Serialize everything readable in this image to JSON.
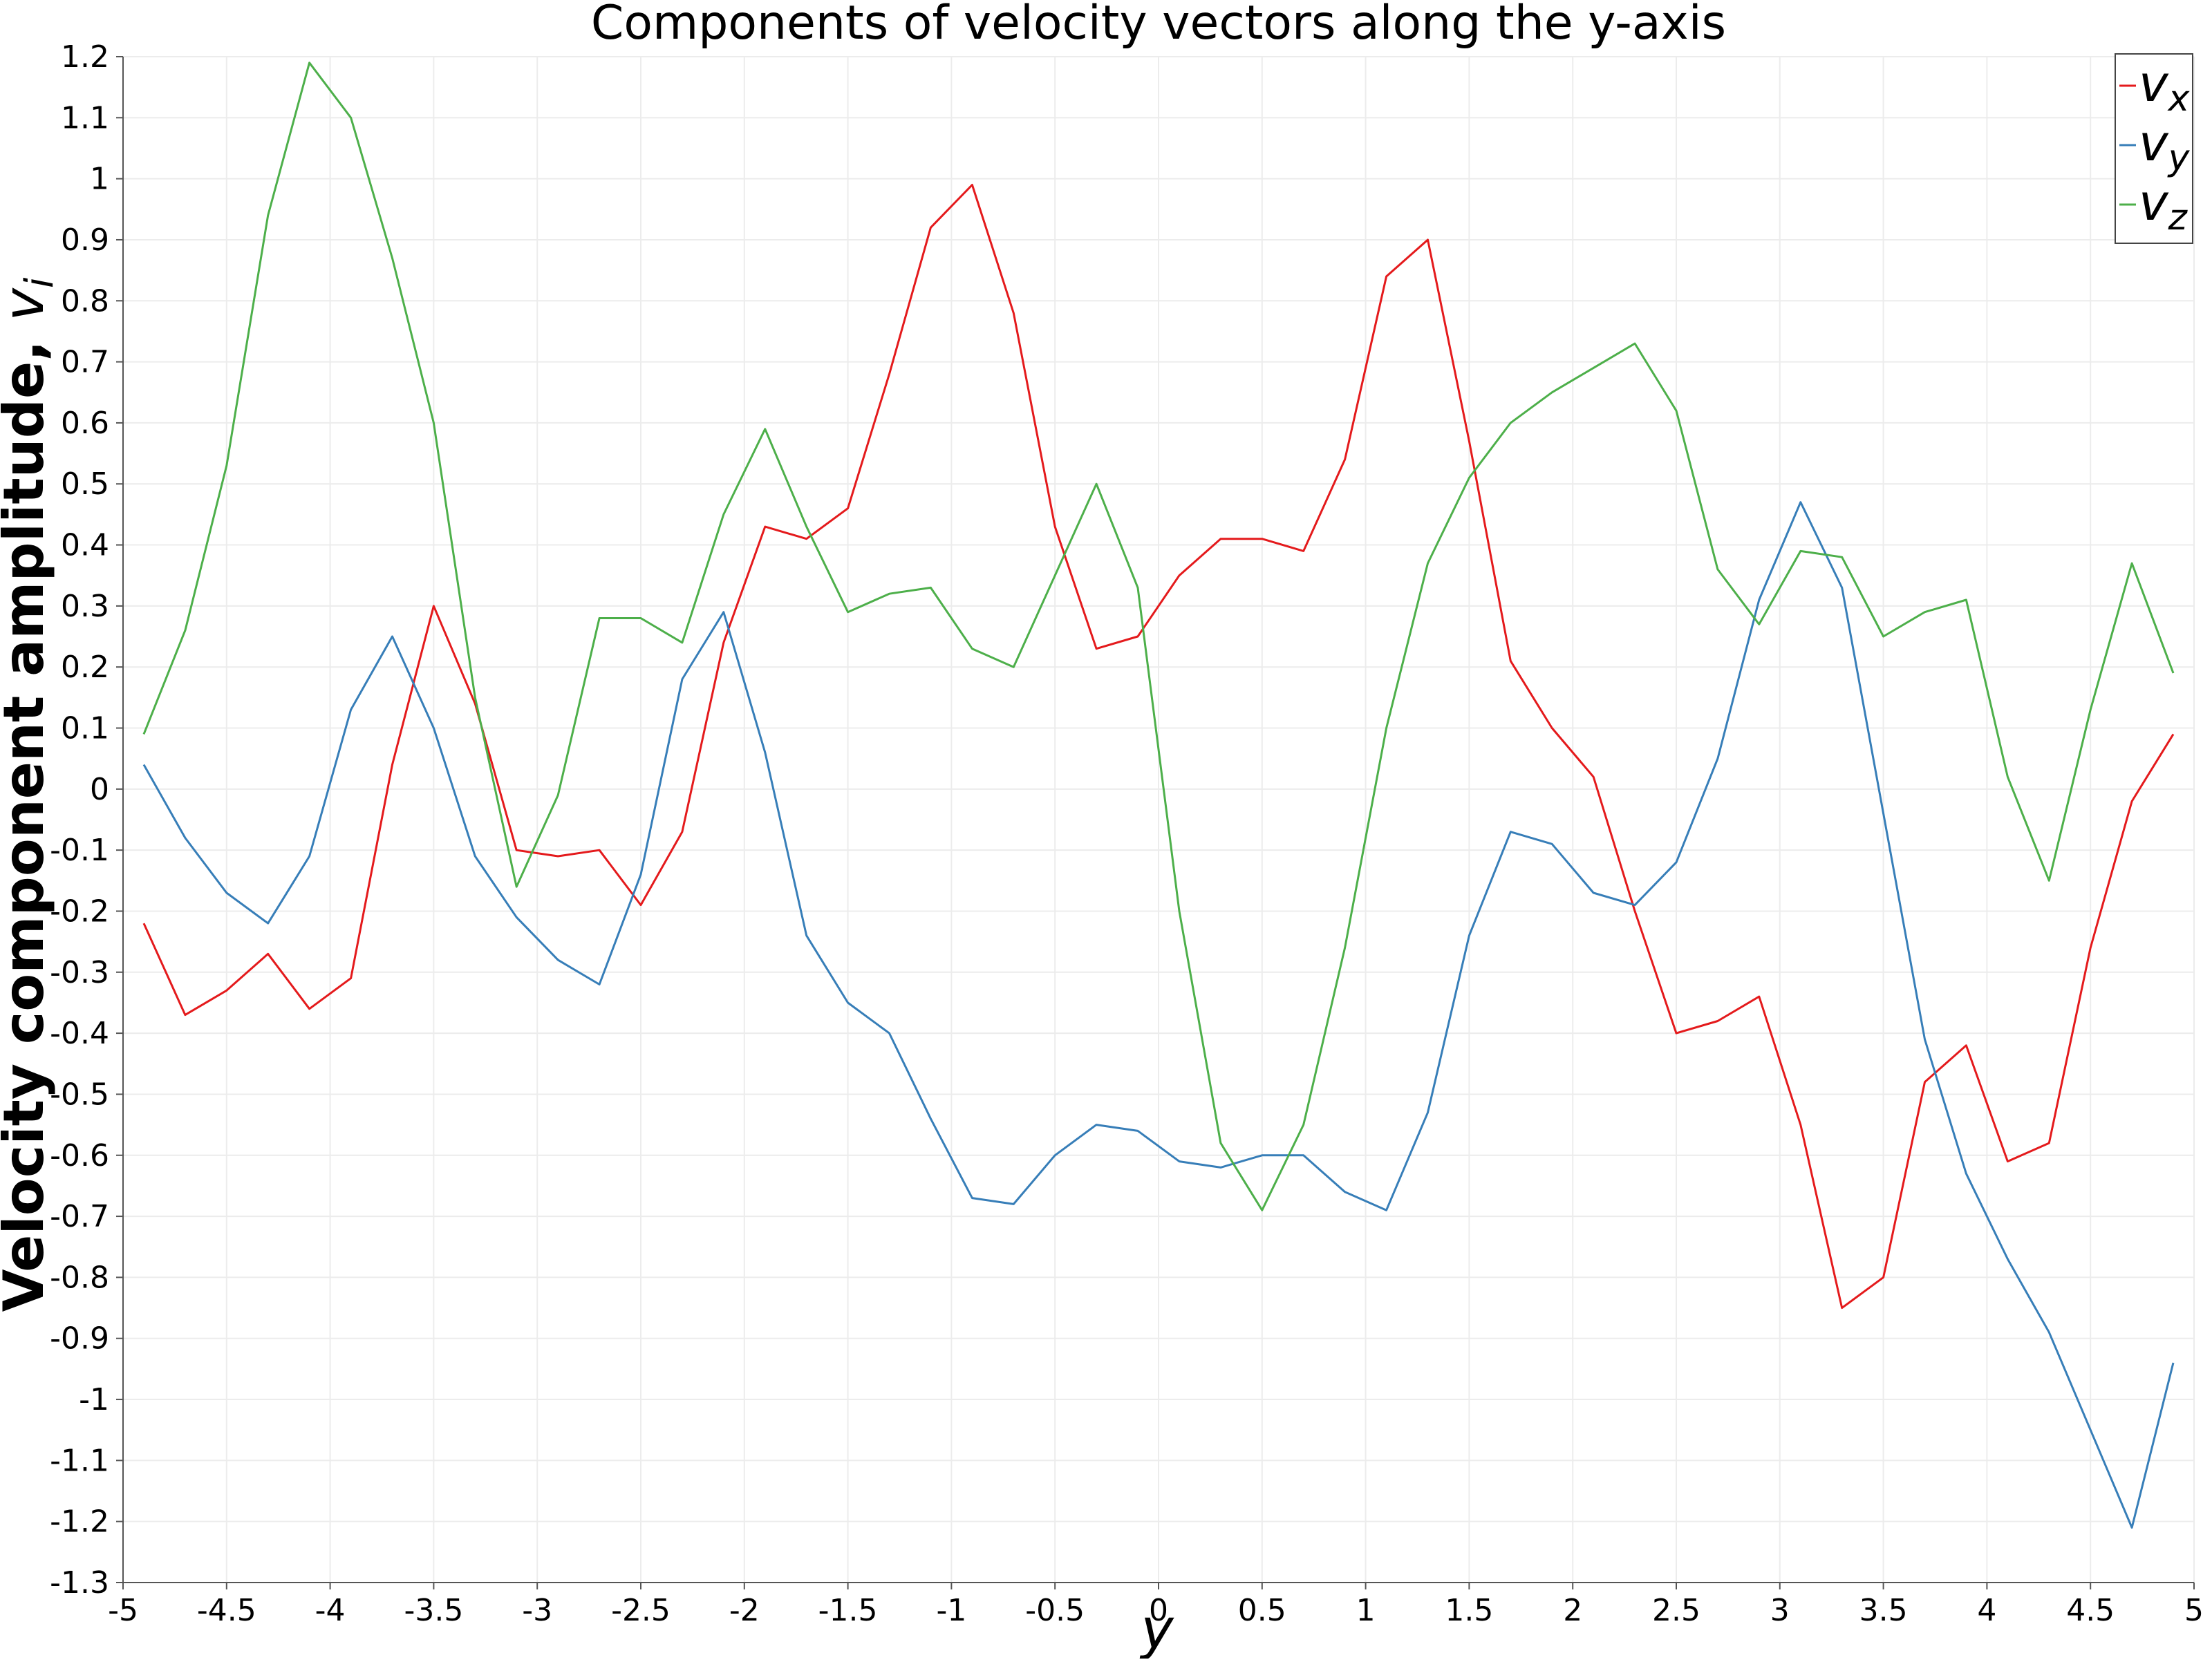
{
  "chart_data": {
    "type": "line",
    "title": "Components of velocity vectors along the y-axis",
    "xlabel": "y",
    "ylabel_text": "Velocity component amplitude, ",
    "ylabel_symbol": "v",
    "ylabel_subscript": "i",
    "xlim": [
      -5,
      5
    ],
    "ylim": [
      -1.3,
      1.2
    ],
    "xticks": [
      -5,
      -4.5,
      -4,
      -3.5,
      -3,
      -2.5,
      -2,
      -1.5,
      -1,
      -0.5,
      0,
      0.5,
      1,
      1.5,
      2,
      2.5,
      3,
      3.5,
      4,
      4.5,
      5
    ],
    "yticks": [
      1.2,
      1.1,
      1,
      0.9,
      0.8,
      0.7,
      0.6,
      0.5,
      0.4,
      0.3,
      0.2,
      0.1,
      0,
      -0.1,
      -0.2,
      -0.3,
      -0.4,
      -0.5,
      -0.6,
      -0.7,
      -0.8,
      -0.9,
      -1,
      -1.1,
      -1.2,
      -1.3
    ],
    "grid": true,
    "legend_position": "top-right",
    "x": [
      -4.9,
      -4.7,
      -4.5,
      -4.3,
      -4.1,
      -3.9,
      -3.7,
      -3.5,
      -3.3,
      -3.1,
      -2.9,
      -2.7,
      -2.5,
      -2.3,
      -2.1,
      -1.9,
      -1.7,
      -1.5,
      -1.3,
      -1.1,
      -0.9,
      -0.7,
      -0.5,
      -0.3,
      -0.1,
      0.1,
      0.3,
      0.5,
      0.7,
      0.9,
      1.1,
      1.3,
      1.5,
      1.7,
      1.9,
      2.1,
      2.3,
      2.5,
      2.7,
      2.9,
      3.1,
      3.3,
      3.5,
      3.7,
      3.9,
      4.1,
      4.3,
      4.5,
      4.7,
      4.9
    ],
    "series": [
      {
        "name": "v",
        "subscript": "x",
        "color": "#e41a1c",
        "values": [
          -0.22,
          -0.37,
          -0.33,
          -0.27,
          -0.36,
          -0.31,
          0.04,
          0.3,
          0.14,
          -0.1,
          -0.11,
          -0.1,
          -0.19,
          -0.07,
          0.24,
          0.43,
          0.41,
          0.46,
          0.68,
          0.92,
          0.99,
          0.78,
          0.43,
          0.23,
          0.25,
          0.35,
          0.41,
          0.41,
          0.39,
          0.54,
          0.84,
          0.9,
          0.57,
          0.21,
          0.1,
          0.02,
          -0.2,
          -0.4,
          -0.38,
          -0.34,
          -0.55,
          -0.85,
          -0.8,
          -0.48,
          -0.42,
          -0.61,
          -0.58,
          -0.26,
          -0.02,
          0.09
        ]
      },
      {
        "name": "v",
        "subscript": "y",
        "color": "#377eb8",
        "values": [
          0.04,
          -0.08,
          -0.17,
          -0.22,
          -0.11,
          0.13,
          0.25,
          0.1,
          -0.11,
          -0.21,
          -0.28,
          -0.32,
          -0.14,
          0.18,
          0.29,
          0.06,
          -0.24,
          -0.35,
          -0.4,
          -0.54,
          -0.67,
          -0.68,
          -0.6,
          -0.55,
          -0.56,
          -0.61,
          -0.62,
          -0.6,
          -0.6,
          -0.66,
          -0.69,
          -0.53,
          -0.24,
          -0.07,
          -0.09,
          -0.17,
          -0.19,
          -0.12,
          0.05,
          0.31,
          0.47,
          0.33,
          -0.04,
          -0.41,
          -0.63,
          -0.77,
          -0.89,
          -1.05,
          -1.21,
          -0.94
        ]
      },
      {
        "name": "v",
        "subscript": "z",
        "color": "#4daf4a",
        "values": [
          0.09,
          0.26,
          0.53,
          0.94,
          1.19,
          1.1,
          0.87,
          0.6,
          0.15,
          -0.16,
          -0.01,
          0.28,
          0.28,
          0.24,
          0.45,
          0.59,
          0.43,
          0.29,
          0.32,
          0.33,
          0.23,
          0.2,
          0.35,
          0.5,
          0.33,
          -0.2,
          -0.58,
          -0.69,
          -0.55,
          -0.26,
          0.1,
          0.37,
          0.51,
          0.6,
          0.65,
          0.69,
          0.73,
          0.62,
          0.36,
          0.27,
          0.39,
          0.38,
          0.25,
          0.29,
          0.31,
          0.02,
          -0.15,
          0.13,
          0.37,
          0.19
        ]
      }
    ]
  }
}
